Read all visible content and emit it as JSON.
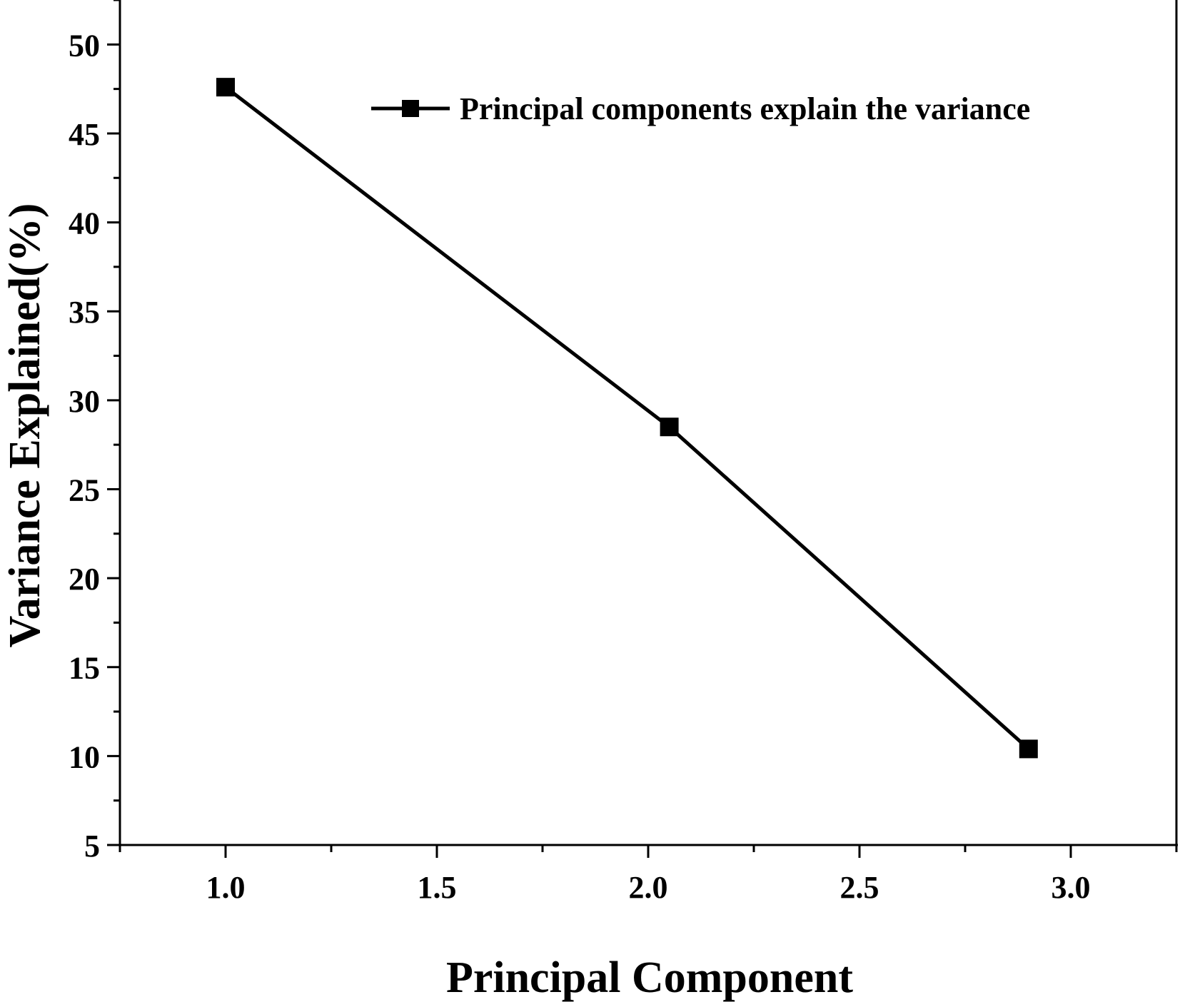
{
  "chart_data": {
    "type": "line",
    "title": "",
    "xlabel": "Principal Component",
    "ylabel": "Variance Explained(%)",
    "xlim": [
      0.75,
      3.25
    ],
    "ylim": [
      5,
      52.5
    ],
    "x_ticks": [
      1.0,
      1.5,
      2.0,
      2.5,
      3.0
    ],
    "x_tick_labels": [
      "1.0",
      "1.5",
      "2.0",
      "2.5",
      "3.0"
    ],
    "y_ticks": [
      5,
      10,
      15,
      20,
      25,
      30,
      35,
      40,
      45,
      50
    ],
    "y_tick_labels": [
      "5",
      "10",
      "15",
      "20",
      "25",
      "30",
      "35",
      "40",
      "45",
      "50"
    ],
    "grid": false,
    "legend_position": "top-right",
    "series": [
      {
        "name": "Principal components explain the variance",
        "marker": "square",
        "color": "#000000",
        "x": [
          1.0,
          2.05,
          2.9
        ],
        "values": [
          47.6,
          28.5,
          10.4
        ]
      }
    ]
  }
}
